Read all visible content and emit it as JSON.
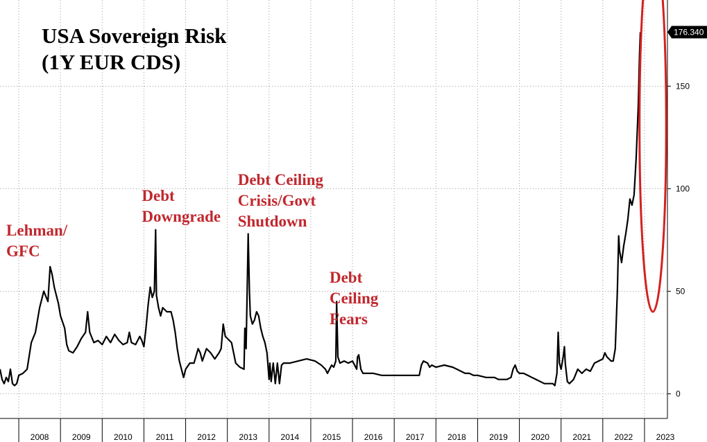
{
  "chart_data": {
    "type": "line",
    "title": "USA Sovereign Risk",
    "subtitle": "(1Y EUR CDS)",
    "xlabel": "",
    "ylabel": "",
    "x_tick_labels": [
      "2008",
      "2009",
      "2010",
      "2011",
      "2012",
      "2013",
      "2014",
      "2015",
      "2016",
      "2017",
      "2018",
      "2019",
      "2020",
      "2021",
      "2022",
      "2023"
    ],
    "y_ticks": [
      0,
      50,
      100,
      150
    ],
    "ylim": [
      -12,
      192
    ],
    "xlim": [
      2007.55,
      2023.55
    ],
    "grid": true,
    "last_value_label": "176.340",
    "annotations": [
      {
        "lines": [
          "Lehman/",
          "GFC"
        ],
        "x": 2007.7
      },
      {
        "lines": [
          "Debt",
          "Downgrade"
        ],
        "x": 2010.95
      },
      {
        "lines": [
          "Debt Ceiling",
          "Crisis/Govt",
          "Shutdown"
        ],
        "x": 2013.25
      },
      {
        "lines": [
          "Debt",
          "Ceiling",
          "Fears"
        ],
        "x": 2015.45
      }
    ],
    "highlight": {
      "shape": "ellipse",
      "color": "#d32020",
      "x_center": 2023.2,
      "y_center": 131,
      "x_radius": 0.32,
      "y_radius": 91
    },
    "series": [
      {
        "color": "#000000",
        "points": [
          [
            2007.55,
            12
          ],
          [
            2007.6,
            7
          ],
          [
            2007.65,
            5
          ],
          [
            2007.7,
            8
          ],
          [
            2007.75,
            6
          ],
          [
            2007.8,
            12
          ],
          [
            2007.85,
            5
          ],
          [
            2007.9,
            4
          ],
          [
            2007.95,
            5
          ],
          [
            2008.0,
            9
          ],
          [
            2008.1,
            10
          ],
          [
            2008.2,
            12
          ],
          [
            2008.3,
            25
          ],
          [
            2008.4,
            30
          ],
          [
            2008.5,
            42
          ],
          [
            2008.6,
            50
          ],
          [
            2008.7,
            45
          ],
          [
            2008.75,
            62
          ],
          [
            2008.8,
            58
          ],
          [
            2008.85,
            52
          ],
          [
            2008.95,
            44
          ],
          [
            2009.0,
            38
          ],
          [
            2009.1,
            32
          ],
          [
            2009.15,
            24
          ],
          [
            2009.2,
            21
          ],
          [
            2009.3,
            20
          ],
          [
            2009.4,
            23
          ],
          [
            2009.5,
            27
          ],
          [
            2009.6,
            30
          ],
          [
            2009.65,
            40
          ],
          [
            2009.7,
            30
          ],
          [
            2009.8,
            25
          ],
          [
            2009.9,
            26
          ],
          [
            2010.0,
            24
          ],
          [
            2010.1,
            28
          ],
          [
            2010.2,
            25
          ],
          [
            2010.3,
            29
          ],
          [
            2010.4,
            26
          ],
          [
            2010.5,
            24
          ],
          [
            2010.6,
            25
          ],
          [
            2010.65,
            30
          ],
          [
            2010.7,
            25
          ],
          [
            2010.8,
            24
          ],
          [
            2010.9,
            28
          ],
          [
            2010.95,
            26
          ],
          [
            2011.0,
            23
          ],
          [
            2011.05,
            32
          ],
          [
            2011.1,
            43
          ],
          [
            2011.15,
            52
          ],
          [
            2011.2,
            47
          ],
          [
            2011.25,
            50
          ],
          [
            2011.28,
            80
          ],
          [
            2011.3,
            48
          ],
          [
            2011.35,
            42
          ],
          [
            2011.4,
            38
          ],
          [
            2011.45,
            42
          ],
          [
            2011.55,
            40
          ],
          [
            2011.65,
            40
          ],
          [
            2011.7,
            36
          ],
          [
            2011.75,
            30
          ],
          [
            2011.8,
            22
          ],
          [
            2011.85,
            16
          ],
          [
            2011.95,
            8
          ],
          [
            2012.0,
            12
          ],
          [
            2012.1,
            15
          ],
          [
            2012.2,
            15
          ],
          [
            2012.3,
            22
          ],
          [
            2012.35,
            20
          ],
          [
            2012.4,
            16
          ],
          [
            2012.5,
            22
          ],
          [
            2012.6,
            20
          ],
          [
            2012.7,
            17
          ],
          [
            2012.8,
            20
          ],
          [
            2012.85,
            22
          ],
          [
            2012.9,
            34
          ],
          [
            2012.95,
            28
          ],
          [
            2013.0,
            27
          ],
          [
            2013.1,
            25
          ],
          [
            2013.15,
            20
          ],
          [
            2013.2,
            15
          ],
          [
            2013.3,
            13
          ],
          [
            2013.4,
            12
          ],
          [
            2013.42,
            32
          ],
          [
            2013.45,
            22
          ],
          [
            2013.48,
            55
          ],
          [
            2013.5,
            78
          ],
          [
            2013.53,
            50
          ],
          [
            2013.55,
            38
          ],
          [
            2013.6,
            34
          ],
          [
            2013.65,
            36
          ],
          [
            2013.7,
            40
          ],
          [
            2013.75,
            38
          ],
          [
            2013.8,
            32
          ],
          [
            2013.85,
            28
          ],
          [
            2013.9,
            25
          ],
          [
            2013.95,
            20
          ],
          [
            2013.97,
            15
          ],
          [
            2014.0,
            7
          ],
          [
            2014.02,
            15
          ],
          [
            2014.05,
            6
          ],
          [
            2014.1,
            15
          ],
          [
            2014.15,
            5
          ],
          [
            2014.2,
            15
          ],
          [
            2014.25,
            5
          ],
          [
            2014.3,
            14
          ],
          [
            2014.35,
            15
          ],
          [
            2014.5,
            15
          ],
          [
            2014.7,
            16
          ],
          [
            2014.9,
            17
          ],
          [
            2015.1,
            16
          ],
          [
            2015.25,
            14
          ],
          [
            2015.35,
            12
          ],
          [
            2015.4,
            10
          ],
          [
            2015.45,
            12
          ],
          [
            2015.5,
            14
          ],
          [
            2015.55,
            13
          ],
          [
            2015.6,
            16
          ],
          [
            2015.62,
            45
          ],
          [
            2015.65,
            18
          ],
          [
            2015.7,
            15
          ],
          [
            2015.8,
            16
          ],
          [
            2015.9,
            15
          ],
          [
            2016.0,
            16
          ],
          [
            2016.05,
            14
          ],
          [
            2016.1,
            12
          ],
          [
            2016.12,
            18
          ],
          [
            2016.15,
            19
          ],
          [
            2016.2,
            12
          ],
          [
            2016.25,
            10
          ],
          [
            2016.3,
            10
          ],
          [
            2016.5,
            10
          ],
          [
            2016.7,
            9
          ],
          [
            2016.9,
            9
          ],
          [
            2017.0,
            9
          ],
          [
            2017.2,
            9
          ],
          [
            2017.4,
            9
          ],
          [
            2017.6,
            9
          ],
          [
            2017.65,
            14
          ],
          [
            2017.7,
            16
          ],
          [
            2017.8,
            15
          ],
          [
            2017.85,
            13
          ],
          [
            2017.9,
            14
          ],
          [
            2018.0,
            13
          ],
          [
            2018.2,
            14
          ],
          [
            2018.4,
            13
          ],
          [
            2018.5,
            12
          ],
          [
            2018.6,
            11
          ],
          [
            2018.7,
            10
          ],
          [
            2018.8,
            10
          ],
          [
            2018.9,
            9
          ],
          [
            2019.0,
            9
          ],
          [
            2019.2,
            8
          ],
          [
            2019.4,
            8
          ],
          [
            2019.5,
            7
          ],
          [
            2019.6,
            7
          ],
          [
            2019.7,
            7
          ],
          [
            2019.8,
            8
          ],
          [
            2019.85,
            12
          ],
          [
            2019.9,
            14
          ],
          [
            2019.95,
            11
          ],
          [
            2020.0,
            10
          ],
          [
            2020.1,
            10
          ],
          [
            2020.2,
            9
          ],
          [
            2020.3,
            8
          ],
          [
            2020.4,
            7
          ],
          [
            2020.5,
            6
          ],
          [
            2020.6,
            5
          ],
          [
            2020.7,
            5
          ],
          [
            2020.8,
            5
          ],
          [
            2020.85,
            4
          ],
          [
            2020.9,
            10
          ],
          [
            2020.93,
            30
          ],
          [
            2020.96,
            15
          ],
          [
            2021.0,
            12
          ],
          [
            2021.05,
            18
          ],
          [
            2021.08,
            23
          ],
          [
            2021.1,
            15
          ],
          [
            2021.15,
            6
          ],
          [
            2021.2,
            5
          ],
          [
            2021.3,
            7
          ],
          [
            2021.4,
            12
          ],
          [
            2021.5,
            10
          ],
          [
            2021.6,
            12
          ],
          [
            2021.7,
            11
          ],
          [
            2021.8,
            15
          ],
          [
            2021.9,
            16
          ],
          [
            2022.0,
            17
          ],
          [
            2022.05,
            20
          ],
          [
            2022.1,
            18
          ],
          [
            2022.2,
            16
          ],
          [
            2022.25,
            16
          ],
          [
            2022.3,
            22
          ],
          [
            2022.35,
            50
          ],
          [
            2022.38,
            77
          ],
          [
            2022.4,
            70
          ],
          [
            2022.45,
            64
          ],
          [
            2022.5,
            72
          ],
          [
            2022.55,
            78
          ],
          [
            2022.6,
            85
          ],
          [
            2022.65,
            95
          ],
          [
            2022.7,
            92
          ],
          [
            2022.75,
            97
          ],
          [
            2022.8,
            115
          ],
          [
            2022.85,
            140
          ],
          [
            2022.88,
            165
          ],
          [
            2022.9,
            176.34
          ]
        ]
      }
    ]
  }
}
